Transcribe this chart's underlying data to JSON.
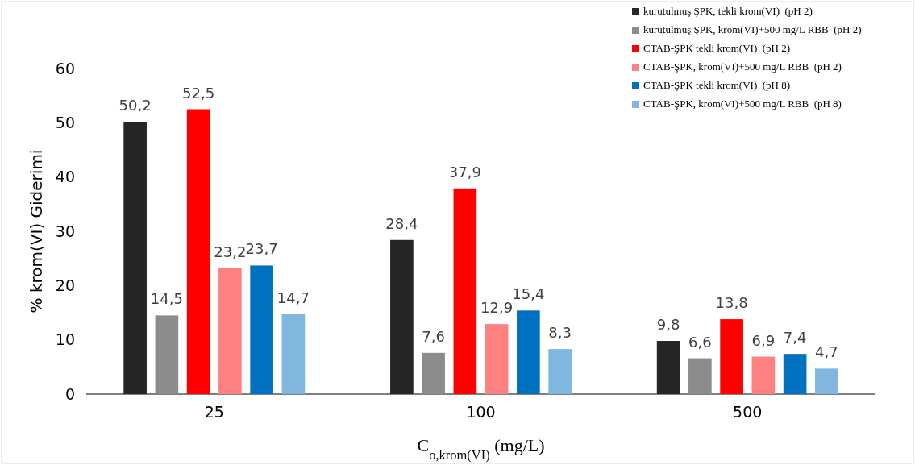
{
  "chart_data": {
    "type": "bar",
    "xlabel": "C$_{o,krom(VI)}$ (mg/L)",
    "ylabel": "% krom(VI) Giderimi",
    "categories": [
      "25",
      "100",
      "500"
    ],
    "ylim": [
      0,
      60
    ],
    "yticks": [
      0,
      10,
      20,
      30,
      40,
      50,
      60
    ],
    "legend": "top right",
    "series": [
      {
        "name": "kurutulmuş ŞPK, tekli krom(VI)  (pH 2)",
        "color": "#262626",
        "values": [
          50.2,
          28.4,
          9.8
        ],
        "value_labels": [
          "50,2",
          "28,4",
          "9,8"
        ]
      },
      {
        "name": "kurutulmuş ŞPK, krom(VI)+500 mg/L RBB  (pH 2)",
        "color": "#8c8c8c",
        "values": [
          14.5,
          7.6,
          6.6
        ],
        "value_labels": [
          "14,5",
          "7,6",
          "6,6"
        ]
      },
      {
        "name": "CTAB-ŞPK tekli krom(VI)  (pH 2)",
        "color": "#ff0000",
        "values": [
          52.5,
          37.9,
          13.8
        ],
        "value_labels": [
          "52,5",
          "37,9",
          "13,8"
        ]
      },
      {
        "name": "CTAB-ŞPK, krom(VI)+500 mg/L RBB  (pH 2)",
        "color": "#ff8080",
        "values": [
          23.2,
          12.9,
          6.9
        ],
        "value_labels": [
          "23,2",
          "12,9",
          "6,9"
        ]
      },
      {
        "name": "CTAB-ŞPK tekli krom(VI)  (pH 8)",
        "color": "#0070c0",
        "values": [
          23.7,
          15.4,
          7.4
        ],
        "value_labels": [
          "23,7",
          "15,4",
          "7,4"
        ]
      },
      {
        "name": "CTAB-ŞPK, krom(VI)+500 mg/L RBB  (pH 8)",
        "color": "#7fb7df",
        "values": [
          14.7,
          8.3,
          4.7
        ],
        "value_labels": [
          "14,7",
          "8,3",
          "4,7"
        ]
      }
    ]
  }
}
